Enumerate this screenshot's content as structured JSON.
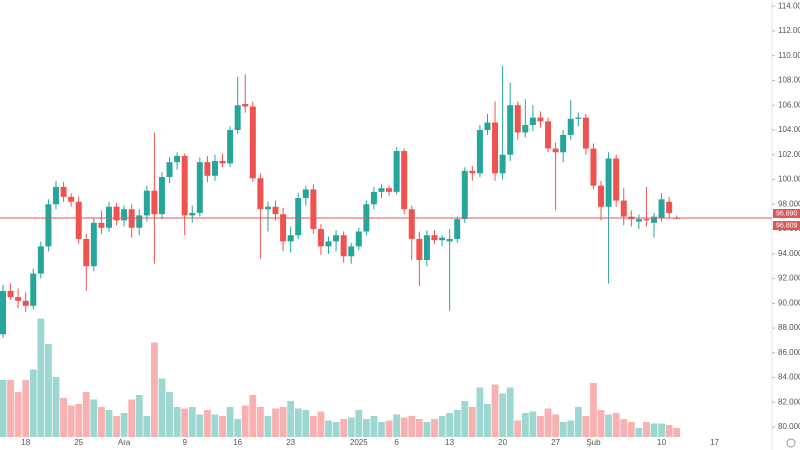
{
  "chart_data": {
    "type": "candlestick",
    "categories": [
      null,
      null,
      null,
      "18",
      null,
      null,
      null,
      null,
      null,
      null,
      "25",
      null,
      null,
      null,
      null,
      null,
      "Ara",
      null,
      null,
      null,
      null,
      null,
      null,
      null,
      "9",
      null,
      null,
      null,
      null,
      null,
      null,
      "16",
      null,
      null,
      null,
      null,
      null,
      null,
      "23",
      null,
      null,
      null,
      null,
      null,
      null,
      null,
      null,
      "2025",
      null,
      null,
      null,
      null,
      "6",
      null,
      null,
      null,
      null,
      null,
      null,
      "13",
      null,
      null,
      null,
      null,
      null,
      null,
      "20",
      null,
      null,
      null,
      null,
      null,
      null,
      "27",
      null,
      null,
      null,
      null,
      "Şub",
      null,
      null,
      null,
      null,
      null,
      null,
      null,
      null,
      "10",
      null,
      null,
      null,
      null,
      null,
      null,
      "17",
      null,
      null,
      null,
      null
    ],
    "open": [
      87.5,
      91,
      90.5,
      90.2,
      89.8,
      92.4,
      94.6,
      98,
      99.4,
      98.6,
      98.2,
      95.2,
      93,
      96.5,
      96.1,
      97.8,
      96.7,
      97.6,
      96.1,
      97.1,
      99.1,
      97.2,
      100.2,
      101.4,
      101.9,
      97.1,
      97.3,
      101.4,
      100.3,
      101.5,
      101.3,
      104,
      106.1,
      105.9,
      100.1,
      97.6,
      97.8,
      97.2,
      95,
      95.5,
      98.5,
      99.2,
      96,
      94.6,
      95,
      95.5,
      93.8,
      94.6,
      95.8,
      98,
      99,
      99.3,
      99,
      102.3,
      97.6,
      95.2,
      93.5,
      95.5,
      95.1,
      95,
      95.2,
      96.8,
      100.7,
      100.5,
      104,
      104.6,
      100.5,
      102,
      106,
      103.8,
      104.4,
      105,
      104.7,
      102.5,
      102.2,
      103.6,
      104.9,
      105,
      102.5,
      99.5,
      97.8,
      101.7,
      98.3,
      97,
      96.6,
      96.8,
      96.5,
      96.9,
      98.2,
      96.9,
      null,
      null,
      null,
      null,
      null,
      null,
      null,
      null,
      null
    ],
    "high": [
      91.5,
      91.6,
      91.2,
      90.9,
      92.8,
      95,
      98.4,
      99.9,
      99.8,
      98.9,
      98.6,
      95.6,
      96.9,
      97.5,
      98.2,
      98.1,
      97.9,
      98,
      97.6,
      99.5,
      103.8,
      100.6,
      101.8,
      102.2,
      102.1,
      97.9,
      101.8,
      101.9,
      102,
      102.1,
      104.3,
      108.3,
      108.5,
      106.3,
      100.5,
      98.2,
      98.3,
      97.7,
      96.2,
      98.9,
      99.5,
      99.6,
      96.4,
      95.4,
      95.9,
      95.8,
      94.9,
      96.1,
      98.3,
      99.4,
      99.6,
      99.5,
      102.6,
      102.5,
      97.9,
      95.8,
      95.9,
      95.9,
      95.5,
      96,
      97,
      101,
      101.1,
      104.4,
      105.3,
      106.3,
      109.2,
      107.8,
      106.3,
      106.5,
      106,
      105.5,
      105,
      103,
      104,
      106.4,
      105.4,
      105.3,
      102.9,
      99.9,
      102.2,
      102,
      99.3,
      97.5,
      97.2,
      99.4,
      97.3,
      98.9,
      98.6,
      97.1,
      null,
      null,
      null,
      null,
      null,
      null,
      null,
      null,
      null
    ],
    "low": [
      87.2,
      90.3,
      89.6,
      89.3,
      89.5,
      92,
      94.2,
      97.6,
      98.2,
      97.8,
      94.8,
      91,
      92.6,
      95.6,
      95.8,
      96.3,
      96.2,
      95.3,
      95.5,
      96.6,
      93.2,
      96.8,
      99.7,
      100.8,
      95.5,
      96.5,
      97,
      99.8,
      99.9,
      101,
      101,
      103.7,
      105.4,
      99.8,
      93.6,
      95.8,
      96.7,
      94.2,
      94.1,
      95.2,
      97.9,
      95.6,
      93.9,
      94,
      94.2,
      93.3,
      93.2,
      94.3,
      95.5,
      97.6,
      98.5,
      98.7,
      98.8,
      97.2,
      93.5,
      91.4,
      93,
      94.8,
      94.6,
      89.4,
      94.9,
      96.5,
      99.9,
      100.2,
      103.6,
      99.9,
      100,
      101.5,
      103.2,
      103.4,
      103.9,
      104.2,
      102.2,
      97.5,
      101.4,
      103.2,
      104.3,
      102,
      99.2,
      96.7,
      91.6,
      97.8,
      96.3,
      96.2,
      96,
      96.2,
      95.3,
      96.6,
      96.9,
      96.8,
      null,
      null,
      null,
      null,
      null,
      null,
      null,
      null,
      null
    ],
    "close": [
      91,
      90.5,
      90.2,
      89.8,
      92.4,
      94.6,
      98,
      99.4,
      98.6,
      98.2,
      95.2,
      93,
      96.5,
      96.1,
      97.8,
      96.7,
      97.6,
      96.1,
      97.1,
      99.1,
      97.2,
      100.2,
      101.4,
      101.9,
      97.1,
      97.3,
      101.4,
      100.3,
      101.5,
      101.3,
      104,
      106,
      105.9,
      100.1,
      97.6,
      97.8,
      97.2,
      95,
      95.5,
      98.5,
      99.2,
      96,
      94.6,
      95,
      95.5,
      93.8,
      94.6,
      95.8,
      98,
      99,
      99.3,
      99,
      102.3,
      97.6,
      95.2,
      93.5,
      95.5,
      95.1,
      95.3,
      95.2,
      96.8,
      100.7,
      100.5,
      104,
      104.6,
      100.5,
      102,
      106,
      103.8,
      104.4,
      105,
      104.7,
      102.5,
      102.2,
      103.6,
      104.9,
      105,
      102.5,
      99.5,
      97.8,
      101.7,
      98.3,
      97,
      96.8,
      96.8,
      96.7,
      97,
      98.4,
      97.3,
      96.89,
      null,
      null,
      null,
      null,
      null,
      null,
      null,
      null,
      null
    ],
    "volume": [
      38,
      38,
      30,
      38,
      45,
      79,
      62,
      40,
      26,
      21,
      22,
      30,
      25,
      20,
      18,
      14,
      16,
      25,
      28,
      14,
      63,
      39,
      30,
      20,
      19,
      20,
      15,
      18,
      15,
      14,
      20,
      12,
      21,
      28,
      20,
      14,
      19,
      20,
      24,
      19,
      18,
      14,
      17,
      11,
      10,
      12,
      13,
      18,
      12,
      14,
      10,
      11,
      15,
      13,
      14,
      12,
      10,
      12,
      14,
      16,
      18,
      24,
      20,
      33,
      22,
      35,
      29,
      33,
      11,
      16,
      17,
      14,
      19,
      15,
      10,
      11,
      20,
      14,
      36,
      18,
      15,
      16,
      12,
      10,
      6,
      10,
      9,
      9,
      8,
      6,
      null,
      null,
      null,
      null,
      null,
      null,
      null,
      null,
      null
    ],
    "up_color": "#26a69a",
    "down_color": "#ef5350",
    "ylim": [
      79.2,
      114.5
    ],
    "volume_lim": [
      0,
      100
    ],
    "yticks": [
      {
        "value": 80,
        "label": "80.000"
      },
      {
        "value": 82,
        "label": "82.000"
      },
      {
        "value": 84,
        "label": "84.000"
      },
      {
        "value": 86,
        "label": "86.000"
      },
      {
        "value": 88,
        "label": "88.000"
      },
      {
        "value": 90,
        "label": "90.000"
      },
      {
        "value": 92,
        "label": "92.000"
      },
      {
        "value": 94,
        "label": "94.000"
      },
      {
        "value": 96,
        "label": "96.000"
      },
      {
        "value": 98,
        "label": "98.000"
      },
      {
        "value": 100,
        "label": "100.000"
      },
      {
        "value": 102,
        "label": "102.000"
      },
      {
        "value": 104,
        "label": "104.000"
      },
      {
        "value": 106,
        "label": "106.000"
      },
      {
        "value": 108,
        "label": "108.000"
      },
      {
        "value": 110,
        "label": "110.000"
      },
      {
        "value": 112,
        "label": "112.000"
      },
      {
        "value": 114,
        "label": "114.000"
      }
    ],
    "price_labels": [
      {
        "value": 96.89,
        "label": "96.890"
      },
      {
        "value": 96.809,
        "label": "96.809"
      }
    ],
    "price_line_color": "#e05555"
  }
}
